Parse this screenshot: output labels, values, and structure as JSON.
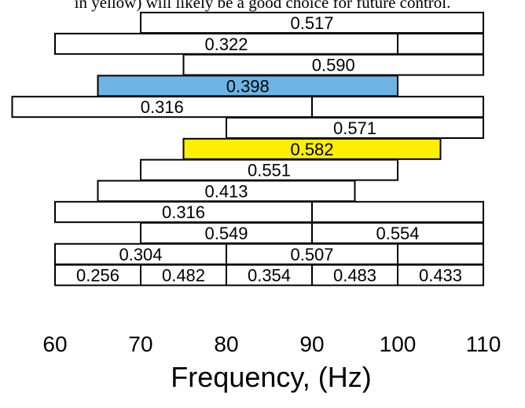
{
  "caption_text": "in yellow) will likely be a good choice for future control.",
  "chart_data": {
    "type": "interval",
    "xlabel": "Frequency, (Hz)",
    "xlim": [
      60,
      110
    ],
    "xticks": [
      60,
      70,
      80,
      90,
      100,
      110
    ],
    "colors": {
      "default": "#ffffff",
      "highlight_blue": "#6cb4e4",
      "highlight_yellow": "#ffee00",
      "border": "#000000"
    },
    "rows": [
      {
        "bands": [
          {
            "x0": 70,
            "x1": 110,
            "value": "0.517"
          }
        ]
      },
      {
        "bands": [
          {
            "x0": 60,
            "x1": 100,
            "value": "0.322"
          },
          {
            "x0": 100,
            "x1": 110,
            "value": ""
          }
        ]
      },
      {
        "bands": [
          {
            "x0": 75,
            "x1": 110,
            "value": "0.590"
          }
        ]
      },
      {
        "bands": [
          {
            "x0": 65,
            "x1": 100,
            "value": "0.398",
            "highlight": "blue"
          }
        ]
      },
      {
        "bands": [
          {
            "x0": 55,
            "x1": 90,
            "value": "0.316"
          },
          {
            "x0": 90,
            "x1": 110,
            "value": ""
          }
        ]
      },
      {
        "bands": [
          {
            "x0": 80,
            "x1": 110,
            "value": "0.571"
          }
        ]
      },
      {
        "bands": [
          {
            "x0": 75,
            "x1": 105,
            "value": "0.582",
            "highlight": "yellow"
          }
        ]
      },
      {
        "bands": [
          {
            "x0": 70,
            "x1": 100,
            "value": "0.551"
          }
        ]
      },
      {
        "bands": [
          {
            "x0": 65,
            "x1": 95,
            "value": "0.413"
          }
        ]
      },
      {
        "bands": [
          {
            "x0": 60,
            "x1": 90,
            "value": "0.316"
          },
          {
            "x0": 90,
            "x1": 110,
            "value": ""
          }
        ]
      },
      {
        "bands": [
          {
            "x0": 70,
            "x1": 90,
            "value": "0.549"
          },
          {
            "x0": 90,
            "x1": 110,
            "value": "0.554"
          }
        ]
      },
      {
        "bands": [
          {
            "x0": 60,
            "x1": 80,
            "value": "0.304"
          },
          {
            "x0": 80,
            "x1": 100,
            "value": "0.507"
          },
          {
            "x0": 100,
            "x1": 110,
            "value": ""
          }
        ]
      },
      {
        "bands": [
          {
            "x0": 60,
            "x1": 70,
            "value": "0.256"
          },
          {
            "x0": 70,
            "x1": 80,
            "value": "0.482"
          },
          {
            "x0": 80,
            "x1": 90,
            "value": "0.354"
          },
          {
            "x0": 90,
            "x1": 100,
            "value": "0.483"
          },
          {
            "x0": 100,
            "x1": 110,
            "value": "0.433"
          }
        ]
      }
    ]
  }
}
